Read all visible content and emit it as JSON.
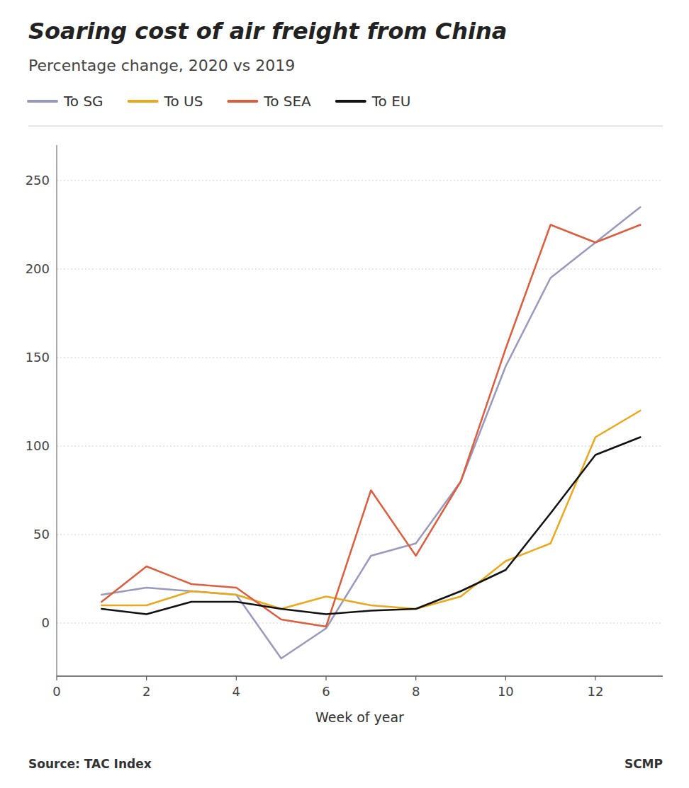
{
  "chart_data": {
    "type": "line",
    "title": "Soaring cost of air freight from China",
    "subtitle": "Percentage change, 2020 vs 2019",
    "x_label": "Week of year",
    "annotations": [
      "Source: TAC Index",
      "SCMP"
    ],
    "x": [
      1,
      2,
      3,
      4,
      5,
      6,
      7,
      8,
      9,
      10,
      11,
      12,
      13
    ],
    "series": [
      {
        "name": "To SG",
        "color": "#9999bb",
        "values": [
          16,
          20,
          18,
          16,
          -20,
          -3,
          38,
          45,
          80,
          145,
          195,
          215,
          235
        ]
      },
      {
        "name": "To US",
        "color": "#e8a820",
        "values": [
          10,
          10,
          18,
          16,
          8,
          15,
          10,
          8,
          15,
          35,
          45,
          105,
          120
        ]
      },
      {
        "name": "To SEA",
        "color": "#d95f40",
        "values": [
          12,
          32,
          22,
          20,
          2,
          -2,
          75,
          38,
          80,
          155,
          225,
          215,
          225
        ]
      },
      {
        "name": "To EU",
        "color": "#111111",
        "values": [
          8,
          5,
          12,
          12,
          8,
          5,
          7,
          8,
          18,
          30,
          62,
          95,
          105
        ]
      }
    ],
    "xlim": [
      0,
      13.5
    ],
    "xticks": [
      0,
      2,
      4,
      6,
      8,
      10,
      12
    ],
    "ylim": [
      -30,
      270
    ],
    "yticks": [
      0,
      50,
      100,
      150,
      200,
      250
    ],
    "grid": true,
    "legend": "top"
  }
}
